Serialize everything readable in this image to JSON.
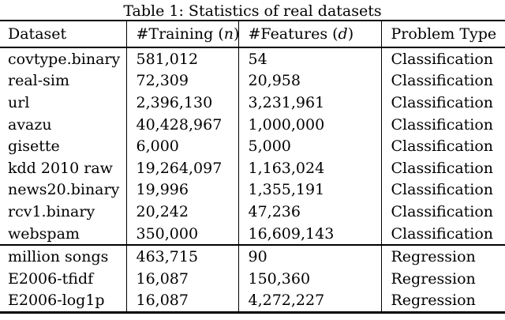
{
  "title": "Table 1: Statistics of real datasets",
  "colors": {
    "text": "#000000",
    "background": "#ffffff",
    "rule": "#000000"
  },
  "table": {
    "header": {
      "dataset": "Dataset",
      "training_prefix": "#Training (",
      "training_var": "n",
      "training_suffix": ")",
      "features_prefix": "#Features (",
      "features_var": "d",
      "features_suffix": ")",
      "problem_type": "Problem Type"
    },
    "sections": [
      {
        "rows": [
          {
            "dataset": "covtype.binary",
            "training": "581,012",
            "features": "54",
            "type": "Classification"
          },
          {
            "dataset": "real-sim",
            "training": "72,309",
            "features": "20,958",
            "type": "Classification"
          },
          {
            "dataset": "url",
            "training": "2,396,130",
            "features": "3,231,961",
            "type": "Classification"
          },
          {
            "dataset": "avazu",
            "training": "40,428,967",
            "features": "1,000,000",
            "type": "Classification"
          },
          {
            "dataset": "gisette",
            "training": "6,000",
            "features": "5,000",
            "type": "Classification"
          },
          {
            "dataset": "kdd 2010 raw",
            "training": "19,264,097",
            "features": "1,163,024",
            "type": "Classification"
          },
          {
            "dataset": "news20.binary",
            "training": "19,996",
            "features": "1,355,191",
            "type": "Classification"
          },
          {
            "dataset": "rcv1.binary",
            "training": "20,242",
            "features": "47,236",
            "type": "Classification"
          },
          {
            "dataset": "webspam",
            "training": "350,000",
            "features": "16,609,143",
            "type": "Classification"
          }
        ]
      },
      {
        "rows": [
          {
            "dataset": "million songs",
            "training": "463,715",
            "features": "90",
            "type": "Regression"
          },
          {
            "dataset": "E2006-tfidf",
            "training": "16,087",
            "features": "150,360",
            "type": "Regression"
          },
          {
            "dataset": "E2006-log1p",
            "training": "16,087",
            "features": "4,272,227",
            "type": "Regression"
          }
        ]
      }
    ]
  }
}
